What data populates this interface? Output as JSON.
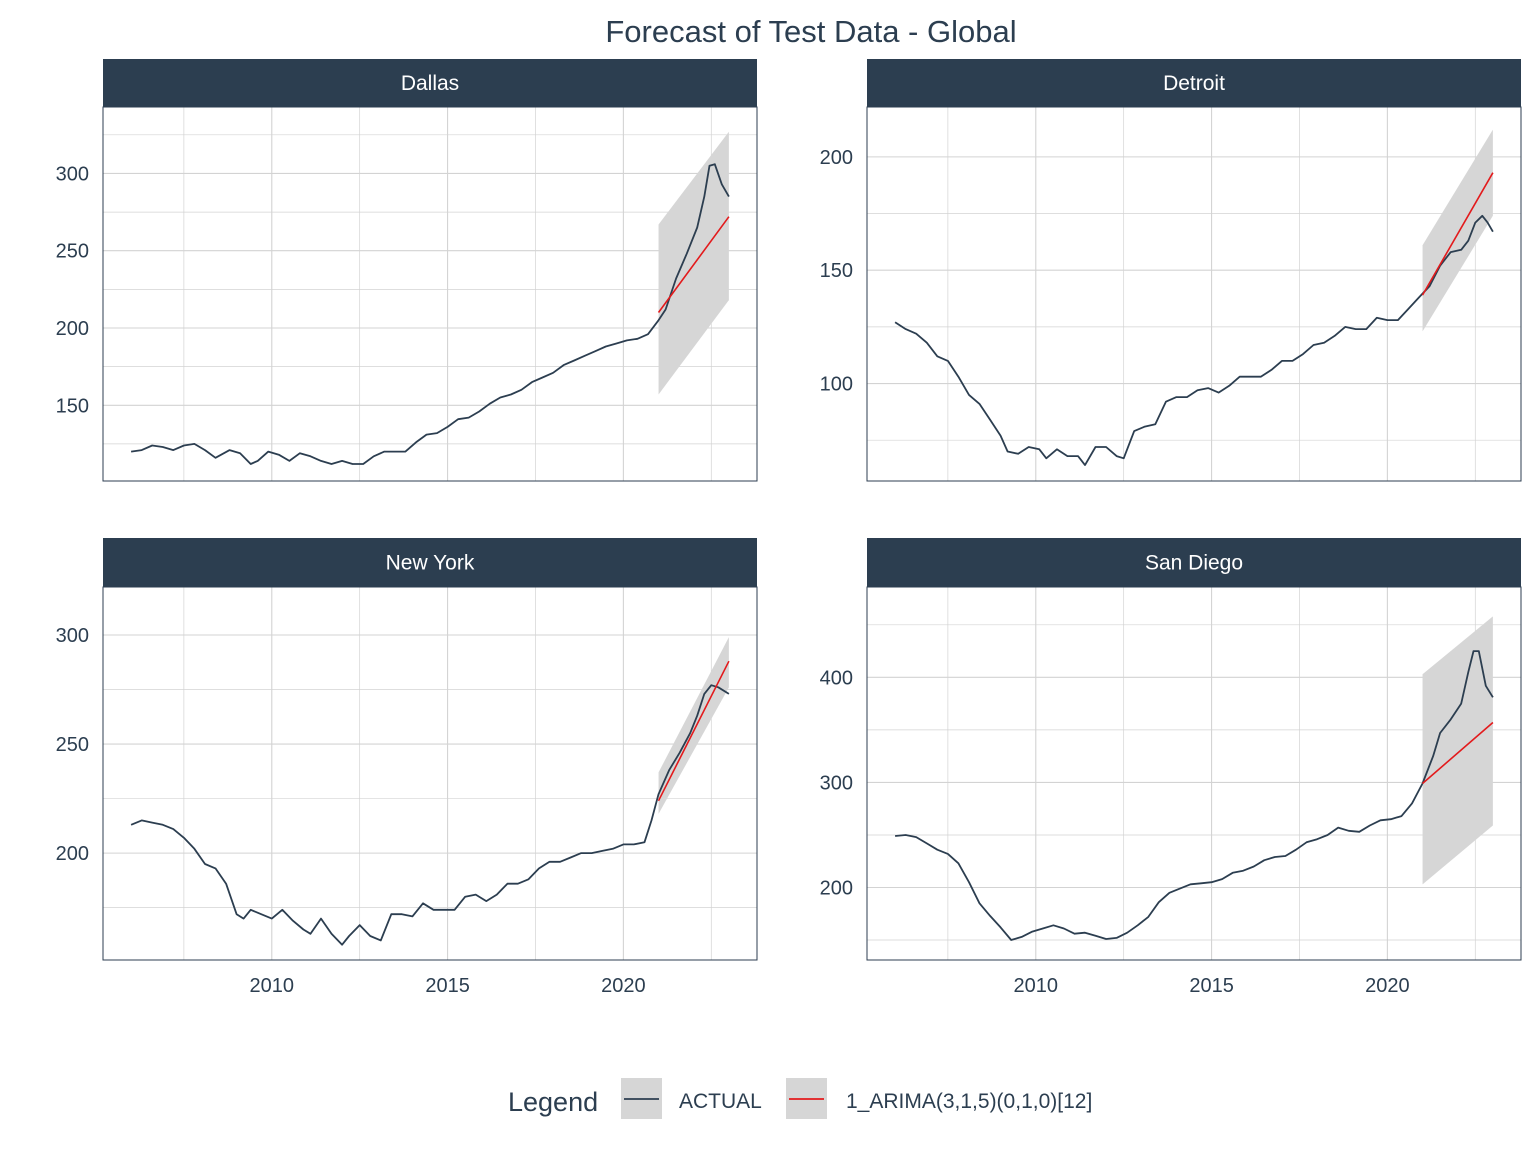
{
  "chart_data": {
    "type": "line",
    "title": "Forecast of Test Data - Global",
    "x_ticks": [
      2010,
      2015,
      2020
    ],
    "xlim": [
      2005.2,
      2023.8
    ],
    "legend": {
      "title": "Legend",
      "position": "bottom",
      "entries": [
        {
          "label": "ACTUAL",
          "color": "#2c3e50"
        },
        {
          "label": "1_ARIMA(3,1,5)(0,1,0)[12]",
          "color": "#e31a1c"
        }
      ]
    },
    "colors": {
      "actual": "#2c3e50",
      "forecast": "#e31a1c",
      "band": "#d6d6d6",
      "strip": "#2c3e50",
      "grid": "#d3d3d3"
    },
    "panels": [
      {
        "name": "Dallas",
        "ylim": [
          101,
          343
        ],
        "y_ticks": [
          150,
          200,
          250,
          300
        ],
        "actual": [
          [
            2006.0,
            120
          ],
          [
            2006.3,
            121
          ],
          [
            2006.6,
            124
          ],
          [
            2006.9,
            123
          ],
          [
            2007.2,
            121
          ],
          [
            2007.5,
            124
          ],
          [
            2007.8,
            125
          ],
          [
            2008.1,
            121
          ],
          [
            2008.4,
            116
          ],
          [
            2008.8,
            121
          ],
          [
            2009.1,
            119
          ],
          [
            2009.4,
            112
          ],
          [
            2009.6,
            114
          ],
          [
            2009.9,
            120
          ],
          [
            2010.2,
            118
          ],
          [
            2010.5,
            114
          ],
          [
            2010.8,
            119
          ],
          [
            2011.1,
            117
          ],
          [
            2011.4,
            114
          ],
          [
            2011.7,
            112
          ],
          [
            2012.0,
            114
          ],
          [
            2012.3,
            112
          ],
          [
            2012.6,
            112
          ],
          [
            2012.9,
            117
          ],
          [
            2013.2,
            120
          ],
          [
            2013.5,
            120
          ],
          [
            2013.8,
            120
          ],
          [
            2014.1,
            126
          ],
          [
            2014.4,
            131
          ],
          [
            2014.7,
            132
          ],
          [
            2015.0,
            136
          ],
          [
            2015.3,
            141
          ],
          [
            2015.6,
            142
          ],
          [
            2015.9,
            146
          ],
          [
            2016.2,
            151
          ],
          [
            2016.5,
            155
          ],
          [
            2016.8,
            157
          ],
          [
            2017.1,
            160
          ],
          [
            2017.4,
            165
          ],
          [
            2017.7,
            168
          ],
          [
            2018.0,
            171
          ],
          [
            2018.3,
            176
          ],
          [
            2018.6,
            179
          ],
          [
            2018.9,
            182
          ],
          [
            2019.2,
            185
          ],
          [
            2019.5,
            188
          ],
          [
            2019.8,
            190
          ],
          [
            2020.1,
            192
          ],
          [
            2020.4,
            193
          ],
          [
            2020.7,
            196
          ],
          [
            2021.0,
            205
          ],
          [
            2021.2,
            212
          ],
          [
            2021.5,
            232
          ],
          [
            2021.8,
            248
          ],
          [
            2022.1,
            265
          ],
          [
            2022.3,
            285
          ],
          [
            2022.45,
            305
          ],
          [
            2022.6,
            306
          ],
          [
            2022.8,
            293
          ],
          [
            2023.0,
            285
          ]
        ],
        "forecast": [
          [
            2021.0,
            210
          ],
          [
            2023.0,
            272
          ]
        ],
        "band_upper": [
          [
            2021.0,
            267
          ],
          [
            2023.0,
            327
          ]
        ],
        "band_lower": [
          [
            2021.0,
            157
          ],
          [
            2023.0,
            218
          ]
        ]
      },
      {
        "name": "Detroit",
        "ylim": [
          57,
          222
        ],
        "y_ticks": [
          100,
          150,
          200
        ],
        "actual": [
          [
            2006.0,
            127
          ],
          [
            2006.3,
            124
          ],
          [
            2006.6,
            122
          ],
          [
            2006.9,
            118
          ],
          [
            2007.2,
            112
          ],
          [
            2007.5,
            110
          ],
          [
            2007.8,
            103
          ],
          [
            2008.1,
            95
          ],
          [
            2008.4,
            91
          ],
          [
            2008.7,
            84
          ],
          [
            2009.0,
            77
          ],
          [
            2009.2,
            70
          ],
          [
            2009.5,
            69
          ],
          [
            2009.8,
            72
          ],
          [
            2010.1,
            71
          ],
          [
            2010.3,
            67
          ],
          [
            2010.6,
            71
          ],
          [
            2010.9,
            68
          ],
          [
            2011.2,
            68
          ],
          [
            2011.4,
            64
          ],
          [
            2011.7,
            72
          ],
          [
            2012.0,
            72
          ],
          [
            2012.3,
            68
          ],
          [
            2012.5,
            67
          ],
          [
            2012.8,
            79
          ],
          [
            2013.1,
            81
          ],
          [
            2013.4,
            82
          ],
          [
            2013.7,
            92
          ],
          [
            2014.0,
            94
          ],
          [
            2014.3,
            94
          ],
          [
            2014.6,
            97
          ],
          [
            2014.9,
            98
          ],
          [
            2015.2,
            96
          ],
          [
            2015.5,
            99
          ],
          [
            2015.8,
            103
          ],
          [
            2016.1,
            103
          ],
          [
            2016.4,
            103
          ],
          [
            2016.7,
            106
          ],
          [
            2017.0,
            110
          ],
          [
            2017.3,
            110
          ],
          [
            2017.6,
            113
          ],
          [
            2017.9,
            117
          ],
          [
            2018.2,
            118
          ],
          [
            2018.5,
            121
          ],
          [
            2018.8,
            125
          ],
          [
            2019.1,
            124
          ],
          [
            2019.4,
            124
          ],
          [
            2019.7,
            129
          ],
          [
            2020.0,
            128
          ],
          [
            2020.3,
            128
          ],
          [
            2020.6,
            133
          ],
          [
            2020.9,
            138
          ],
          [
            2021.2,
            143
          ],
          [
            2021.5,
            152
          ],
          [
            2021.8,
            158
          ],
          [
            2022.1,
            159
          ],
          [
            2022.3,
            163
          ],
          [
            2022.5,
            171
          ],
          [
            2022.7,
            174
          ],
          [
            2022.85,
            171
          ],
          [
            2023.0,
            167
          ]
        ],
        "forecast": [
          [
            2021.0,
            139
          ],
          [
            2023.0,
            193
          ]
        ],
        "band_upper": [
          [
            2021.0,
            161
          ],
          [
            2023.0,
            212
          ]
        ],
        "band_lower": [
          [
            2021.0,
            123
          ],
          [
            2023.0,
            174
          ]
        ]
      },
      {
        "name": "New York",
        "ylim": [
          151,
          322
        ],
        "y_ticks": [
          200,
          250,
          300
        ],
        "actual": [
          [
            2006.0,
            213
          ],
          [
            2006.3,
            215
          ],
          [
            2006.6,
            214
          ],
          [
            2006.9,
            213
          ],
          [
            2007.2,
            211
          ],
          [
            2007.5,
            207
          ],
          [
            2007.8,
            202
          ],
          [
            2008.1,
            195
          ],
          [
            2008.4,
            193
          ],
          [
            2008.7,
            186
          ],
          [
            2009.0,
            172
          ],
          [
            2009.2,
            170
          ],
          [
            2009.4,
            174
          ],
          [
            2009.7,
            172
          ],
          [
            2010.0,
            170
          ],
          [
            2010.3,
            174
          ],
          [
            2010.6,
            169
          ],
          [
            2010.9,
            165
          ],
          [
            2011.1,
            163
          ],
          [
            2011.4,
            170
          ],
          [
            2011.7,
            163
          ],
          [
            2012.0,
            158
          ],
          [
            2012.2,
            162
          ],
          [
            2012.5,
            167
          ],
          [
            2012.8,
            162
          ],
          [
            2013.1,
            160
          ],
          [
            2013.4,
            172
          ],
          [
            2013.7,
            172
          ],
          [
            2014.0,
            171
          ],
          [
            2014.3,
            177
          ],
          [
            2014.6,
            174
          ],
          [
            2014.9,
            174
          ],
          [
            2015.2,
            174
          ],
          [
            2015.5,
            180
          ],
          [
            2015.8,
            181
          ],
          [
            2016.1,
            178
          ],
          [
            2016.4,
            181
          ],
          [
            2016.7,
            186
          ],
          [
            2017.0,
            186
          ],
          [
            2017.3,
            188
          ],
          [
            2017.6,
            193
          ],
          [
            2017.9,
            196
          ],
          [
            2018.2,
            196
          ],
          [
            2018.5,
            198
          ],
          [
            2018.8,
            200
          ],
          [
            2019.1,
            200
          ],
          [
            2019.4,
            201
          ],
          [
            2019.7,
            202
          ],
          [
            2020.0,
            204
          ],
          [
            2020.3,
            204
          ],
          [
            2020.6,
            205
          ],
          [
            2020.8,
            215
          ],
          [
            2021.0,
            227
          ],
          [
            2021.3,
            238
          ],
          [
            2021.6,
            246
          ],
          [
            2021.9,
            255
          ],
          [
            2022.1,
            263
          ],
          [
            2022.3,
            273
          ],
          [
            2022.5,
            277
          ],
          [
            2022.7,
            276
          ],
          [
            2023.0,
            273
          ]
        ],
        "forecast": [
          [
            2021.0,
            224
          ],
          [
            2023.0,
            288
          ]
        ],
        "band_upper": [
          [
            2021.0,
            237
          ],
          [
            2023.0,
            299
          ]
        ],
        "band_lower": [
          [
            2021.0,
            218
          ],
          [
            2023.0,
            276
          ]
        ]
      },
      {
        "name": "San Diego",
        "ylim": [
          131,
          486
        ],
        "y_ticks": [
          200,
          300,
          400
        ],
        "actual": [
          [
            2006.0,
            249
          ],
          [
            2006.3,
            250
          ],
          [
            2006.6,
            248
          ],
          [
            2006.9,
            242
          ],
          [
            2007.2,
            236
          ],
          [
            2007.5,
            232
          ],
          [
            2007.8,
            223
          ],
          [
            2008.1,
            205
          ],
          [
            2008.4,
            185
          ],
          [
            2008.7,
            173
          ],
          [
            2009.0,
            162
          ],
          [
            2009.3,
            150
          ],
          [
            2009.6,
            153
          ],
          [
            2009.9,
            158
          ],
          [
            2010.2,
            161
          ],
          [
            2010.5,
            164
          ],
          [
            2010.8,
            161
          ],
          [
            2011.1,
            156
          ],
          [
            2011.4,
            157
          ],
          [
            2011.7,
            154
          ],
          [
            2012.0,
            151
          ],
          [
            2012.3,
            152
          ],
          [
            2012.6,
            157
          ],
          [
            2012.9,
            164
          ],
          [
            2013.2,
            172
          ],
          [
            2013.5,
            186
          ],
          [
            2013.8,
            195
          ],
          [
            2014.1,
            199
          ],
          [
            2014.4,
            203
          ],
          [
            2014.7,
            204
          ],
          [
            2015.0,
            205
          ],
          [
            2015.3,
            208
          ],
          [
            2015.6,
            214
          ],
          [
            2015.9,
            216
          ],
          [
            2016.2,
            220
          ],
          [
            2016.5,
            226
          ],
          [
            2016.8,
            229
          ],
          [
            2017.1,
            230
          ],
          [
            2017.4,
            236
          ],
          [
            2017.7,
            243
          ],
          [
            2018.0,
            246
          ],
          [
            2018.3,
            250
          ],
          [
            2018.6,
            257
          ],
          [
            2018.9,
            254
          ],
          [
            2019.2,
            253
          ],
          [
            2019.5,
            259
          ],
          [
            2019.8,
            264
          ],
          [
            2020.1,
            265
          ],
          [
            2020.4,
            268
          ],
          [
            2020.7,
            280
          ],
          [
            2021.0,
            299
          ],
          [
            2021.3,
            325
          ],
          [
            2021.5,
            347
          ],
          [
            2021.8,
            360
          ],
          [
            2022.1,
            375
          ],
          [
            2022.3,
            405
          ],
          [
            2022.45,
            425
          ],
          [
            2022.6,
            425
          ],
          [
            2022.8,
            392
          ],
          [
            2023.0,
            381
          ]
        ],
        "forecast": [
          [
            2021.0,
            299
          ],
          [
            2023.0,
            357
          ]
        ],
        "band_upper": [
          [
            2021.0,
            403
          ],
          [
            2023.0,
            458
          ]
        ],
        "band_lower": [
          [
            2021.0,
            203
          ],
          [
            2023.0,
            259
          ]
        ]
      }
    ]
  }
}
